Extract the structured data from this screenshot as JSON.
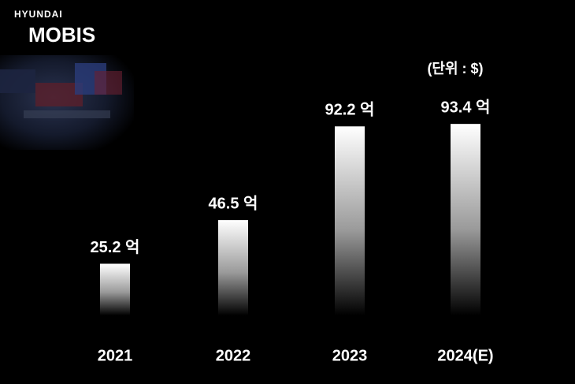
{
  "logo": {
    "brand": "HYUNDAI",
    "name": "MOBIS"
  },
  "chart_data": {
    "type": "bar",
    "unit_label": "(단위 : $)",
    "categories": [
      "2021",
      "2022",
      "2023",
      "2024(E)"
    ],
    "values": [
      25.2,
      46.5,
      92.2,
      93.4
    ],
    "value_labels": [
      "25.2 억",
      "46.5 억",
      "92.2 억",
      "93.4 억"
    ],
    "color": "#ffffff"
  }
}
